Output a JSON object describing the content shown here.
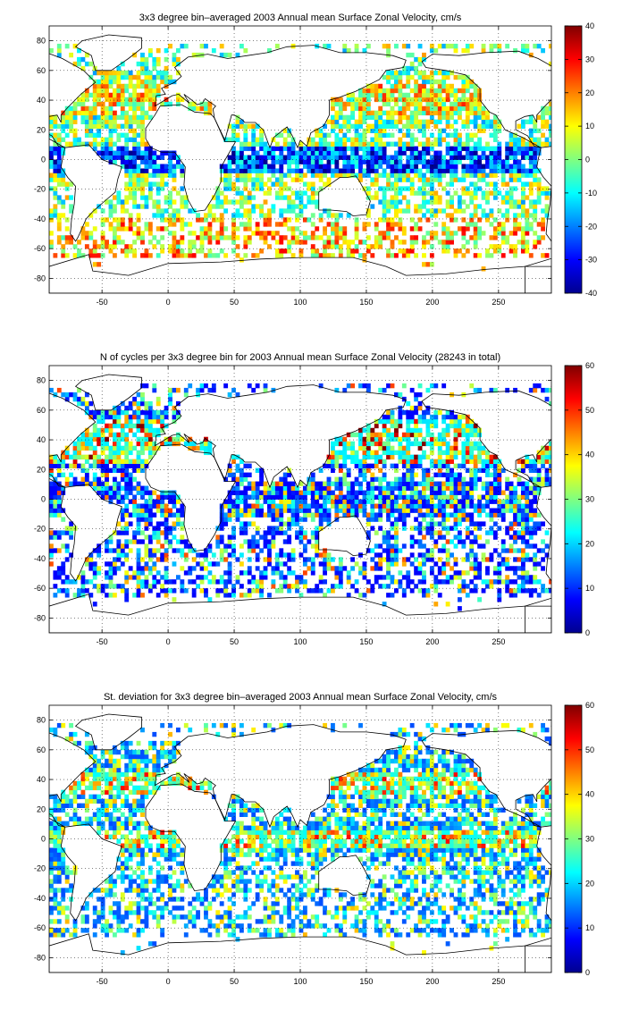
{
  "colors": {
    "jet": [
      "#00008f",
      "#0000ff",
      "#0080ff",
      "#00ffff",
      "#80ff80",
      "#ffff00",
      "#ff8000",
      "#ff0000",
      "#800000"
    ],
    "land": "#000000",
    "grid": "#000000"
  },
  "chart_data": [
    {
      "type": "heatmap",
      "title": "3x3 degree bin–averaged 2003 Annual mean Surface Zonal Velocity, cm/s",
      "xlabel": "",
      "ylabel": "",
      "xlim": [
        -90,
        290
      ],
      "ylim": [
        -90,
        90
      ],
      "xticks": [
        -50,
        0,
        50,
        100,
        150,
        200,
        250
      ],
      "yticks": [
        80,
        60,
        40,
        20,
        0,
        -20,
        -40,
        -60,
        -80
      ],
      "colorbar": {
        "min": -40,
        "max": 40,
        "ticks": [
          40,
          30,
          20,
          10,
          0,
          -10,
          -20,
          -30,
          -40
        ]
      },
      "grid": true,
      "bin_size_deg": 3,
      "field": "mean_zonal_velocity"
    },
    {
      "type": "heatmap",
      "title": "N of cycles per 3x3 degree bin for 2003 Annual mean Surface Zonal Velocity (28243 in total)",
      "xlabel": "",
      "ylabel": "",
      "xlim": [
        -90,
        290
      ],
      "ylim": [
        -90,
        90
      ],
      "xticks": [
        -50,
        0,
        50,
        100,
        150,
        200,
        250
      ],
      "yticks": [
        80,
        60,
        40,
        20,
        0,
        -20,
        -40,
        -60,
        -80
      ],
      "colorbar": {
        "min": 0,
        "max": 60,
        "ticks": [
          60,
          50,
          40,
          30,
          20,
          10,
          0
        ]
      },
      "grid": true,
      "bin_size_deg": 3,
      "field": "cycle_count"
    },
    {
      "type": "heatmap",
      "title": "St. deviation for 3x3 degree bin–averaged 2003 Annual mean Surface Zonal Velocity, cm/s",
      "xlabel": "",
      "ylabel": "",
      "xlim": [
        -90,
        290
      ],
      "ylim": [
        -90,
        90
      ],
      "xticks": [
        -50,
        0,
        50,
        100,
        150,
        200,
        250
      ],
      "yticks": [
        80,
        60,
        40,
        20,
        0,
        -20,
        -40,
        -60,
        -80
      ],
      "colorbar": {
        "min": 0,
        "max": 60,
        "ticks": [
          60,
          50,
          40,
          30,
          20,
          10,
          0
        ]
      },
      "grid": true,
      "bin_size_deg": 3,
      "field": "std_deviation"
    }
  ]
}
